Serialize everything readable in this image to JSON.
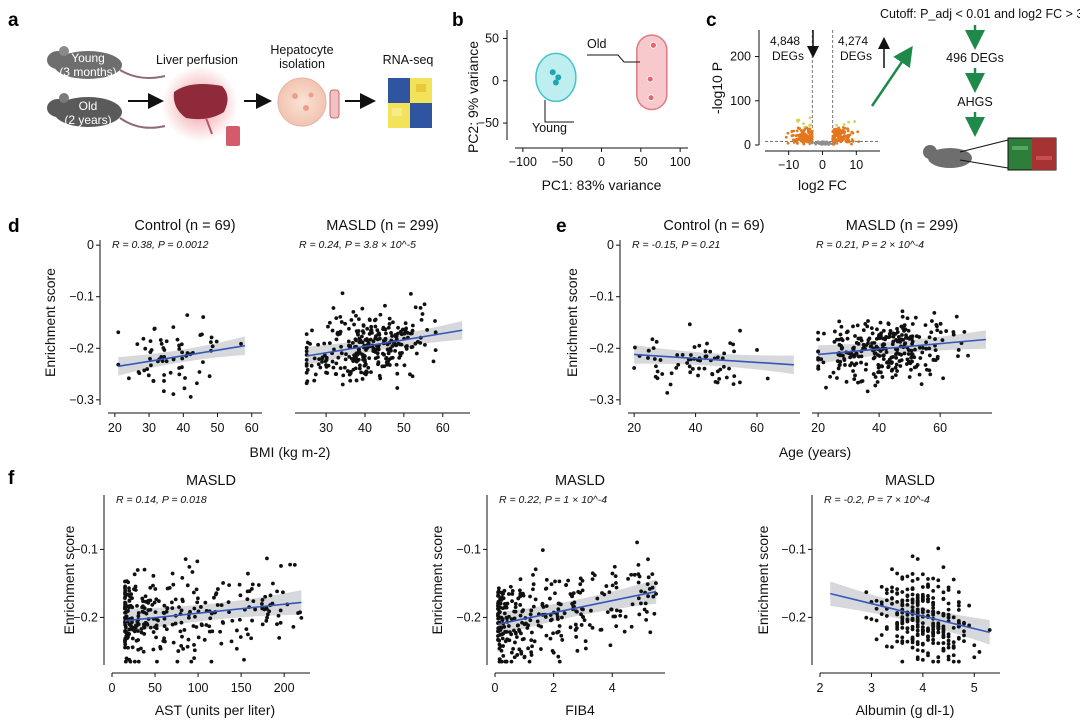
{
  "panels": {
    "a": {
      "letter": "a",
      "young_label": "Young",
      "young_age": "(3 months)",
      "old_label": "Old",
      "old_age": "(2 years)",
      "step1": "Liver perfusion",
      "step2_line1": "Hepatocyte",
      "step2_line2": "isolation",
      "step3": "RNA-seq"
    },
    "b": {
      "letter": "b"
    },
    "c": {
      "letter": "c",
      "down_count": "4,848",
      "up_count": "4,274",
      "degs_word": "DEGs",
      "cutoff_text": "Cutoff: P_adj < 0.01 and log2 FC > 3",
      "flow_1": "496 DEGs",
      "flow_2": "AHGS"
    },
    "d": {
      "letter": "d"
    },
    "e": {
      "letter": "e"
    },
    "f": {
      "letter": "f"
    }
  },
  "colors": {
    "young_fill": "#bfeef0",
    "young_edge": "#45c4c8",
    "old_fill": "#f7c9cc",
    "old_edge": "#e07a80",
    "volcano_up": "#e3771d",
    "volcano_sig": "#cfd54f",
    "fit_line": "#3558b8",
    "ci_band": "#c9cbd0",
    "arrow_green": "#1d8a4a",
    "point": "#111111"
  },
  "chart_data": [
    {
      "id": "b",
      "type": "scatter",
      "xlabel": "PC1: 83% variance",
      "ylabel": "PC2: 9% variance",
      "xlim": [
        -110,
        110
      ],
      "ylim": [
        -70,
        60
      ],
      "xticks": [
        -100,
        -50,
        0,
        50,
        100
      ],
      "yticks": [
        50,
        0,
        -50
      ],
      "series": [
        {
          "name": "Young",
          "x": [
            -62,
            -55,
            -58
          ],
          "y": [
            10,
            4,
            -2
          ]
        },
        {
          "name": "Old",
          "x": [
            66,
            62,
            63
          ],
          "y": [
            42,
            2,
            -20
          ]
        }
      ]
    },
    {
      "id": "c",
      "type": "scatter",
      "subtype": "volcano",
      "xlabel": "log2 FC",
      "ylabel": "-log10 P",
      "xlim": [
        -17,
        17
      ],
      "ylim": [
        0,
        260
      ],
      "xticks": [
        -10,
        0,
        10
      ],
      "yticks": [
        200,
        100,
        0
      ],
      "down_degs": 4848,
      "up_degs": 4274
    },
    {
      "id": "d-control",
      "type": "scatter",
      "title": "Control (n = 69)",
      "stat": "R = 0.38, P = 0.0012",
      "n": 69,
      "xrange": [
        21,
        58
      ],
      "r": 0.38,
      "fit": {
        "x": [
          21,
          58
        ],
        "y": [
          -0.235,
          -0.195
        ]
      },
      "xlabel": "BMI (kg m-2)",
      "ylabel": "Enrichment score",
      "xticks": [
        20,
        30,
        40,
        50,
        60
      ],
      "yticks": [
        0,
        -0.1,
        -0.2,
        -0.3
      ],
      "xlim": [
        18,
        63
      ],
      "ylim": [
        -0.31,
        0.01
      ]
    },
    {
      "id": "d-masld",
      "type": "scatter",
      "title": "MASLD (n = 299)",
      "stat": "R = 0.24, P = 3.8 × 10^-5",
      "n": 299,
      "xrange": [
        25,
        65
      ],
      "r": 0.24,
      "fit": {
        "x": [
          25,
          65
        ],
        "y": [
          -0.215,
          -0.165
        ]
      },
      "xticks": [
        30,
        40,
        50,
        60
      ],
      "xlim": [
        22,
        67
      ],
      "ylim": [
        -0.31,
        0.01
      ]
    },
    {
      "id": "e-control",
      "type": "scatter",
      "title": "Control (n = 69)",
      "stat": "R = -0.15, P = 0.21",
      "n": 69,
      "xrange": [
        20,
        72
      ],
      "r": -0.15,
      "fit": {
        "x": [
          20,
          72
        ],
        "y": [
          -0.212,
          -0.232
        ]
      },
      "xlabel": "Age (years)",
      "ylabel": "Enrichment score",
      "xticks": [
        20,
        40,
        60
      ],
      "yticks": [
        0,
        -0.1,
        -0.2,
        -0.3
      ],
      "xlim": [
        18,
        74
      ],
      "ylim": [
        -0.31,
        0.01
      ]
    },
    {
      "id": "e-masld",
      "type": "scatter",
      "title": "MASLD (n = 299)",
      "stat": "R = 0.21, P = 2 × 10^-4",
      "n": 299,
      "xrange": [
        20,
        75
      ],
      "r": 0.21,
      "fit": {
        "x": [
          20,
          75
        ],
        "y": [
          -0.212,
          -0.183
        ]
      },
      "xticks": [
        20,
        40,
        60
      ],
      "xlim": [
        18,
        77
      ],
      "ylim": [
        -0.31,
        0.01
      ]
    },
    {
      "id": "f-ast",
      "type": "scatter",
      "title": "MASLD",
      "stat": "R = 0.14, P = 0.018",
      "n": 299,
      "xrange": [
        15,
        220
      ],
      "r": 0.14,
      "fit": {
        "x": [
          15,
          220
        ],
        "y": [
          -0.205,
          -0.178
        ]
      },
      "xlabel": "AST (units per liter)",
      "ylabel": "Enrichment score",
      "xticks": [
        0,
        50,
        100,
        150,
        200
      ],
      "yticks": [
        -0.1,
        -0.2
      ],
      "xlim": [
        0,
        230
      ],
      "ylim": [
        -0.27,
        -0.02
      ]
    },
    {
      "id": "f-fib4",
      "type": "scatter",
      "title": "MASLD",
      "stat": "R = 0.22, P = 1 × 10^-4",
      "n": 299,
      "xrange": [
        0.1,
        5.5
      ],
      "r": 0.22,
      "fit": {
        "x": [
          0.1,
          5.5
        ],
        "y": [
          -0.21,
          -0.162
        ]
      },
      "xlabel": "FIB4",
      "ylabel": "Enrichment score",
      "xticks": [
        0,
        2,
        4
      ],
      "yticks": [
        -0.1,
        -0.2
      ],
      "xlim": [
        0,
        5.8
      ],
      "ylim": [
        -0.27,
        -0.02
      ]
    },
    {
      "id": "f-albumin",
      "type": "scatter",
      "title": "MASLD",
      "stat": "R = -0.2, P = 7 × 10^-4",
      "n": 299,
      "xrange": [
        2.2,
        5.3
      ],
      "r": -0.2,
      "fit": {
        "x": [
          2.2,
          5.3
        ],
        "y": [
          -0.165,
          -0.222
        ]
      },
      "xlabel": "Albumin (g dl-1)",
      "ylabel": "Enrichment score",
      "xticks": [
        2,
        3,
        4,
        5
      ],
      "yticks": [
        -0.1,
        -0.2
      ],
      "xlim": [
        2.0,
        5.5
      ],
      "ylim": [
        -0.27,
        -0.02
      ]
    }
  ]
}
